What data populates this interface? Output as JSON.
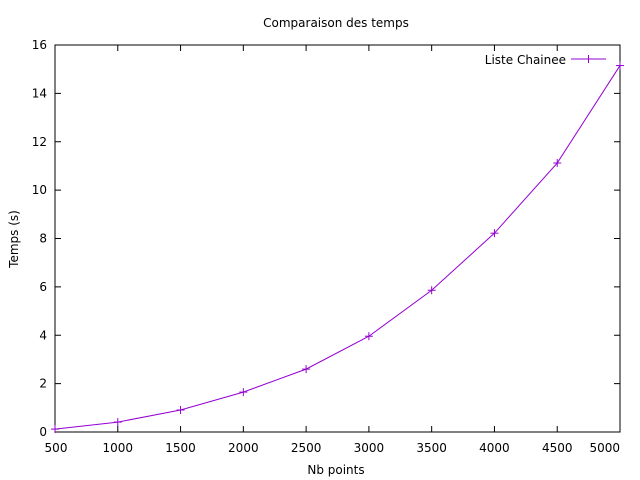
{
  "chart_data": {
    "type": "line",
    "title": "Comparaison des temps",
    "xlabel": "Nb points",
    "ylabel": "Temps (s)",
    "xlim": [
      500,
      5000
    ],
    "ylim": [
      0,
      16
    ],
    "xticks": [
      500,
      1000,
      1500,
      2000,
      2500,
      3000,
      3500,
      4000,
      4500,
      5000
    ],
    "yticks": [
      0,
      2,
      4,
      6,
      8,
      10,
      12,
      14,
      16
    ],
    "grid": false,
    "legend_position": "top-right",
    "series": [
      {
        "name": "Liste Chainee",
        "color": "#9400d3",
        "marker": "plus",
        "x": [
          500,
          1000,
          1500,
          2000,
          2500,
          3000,
          3500,
          4000,
          4500,
          5000
        ],
        "y": [
          0.12,
          0.41,
          0.91,
          1.65,
          2.6,
          3.96,
          5.86,
          8.22,
          11.12,
          15.15
        ]
      }
    ]
  }
}
